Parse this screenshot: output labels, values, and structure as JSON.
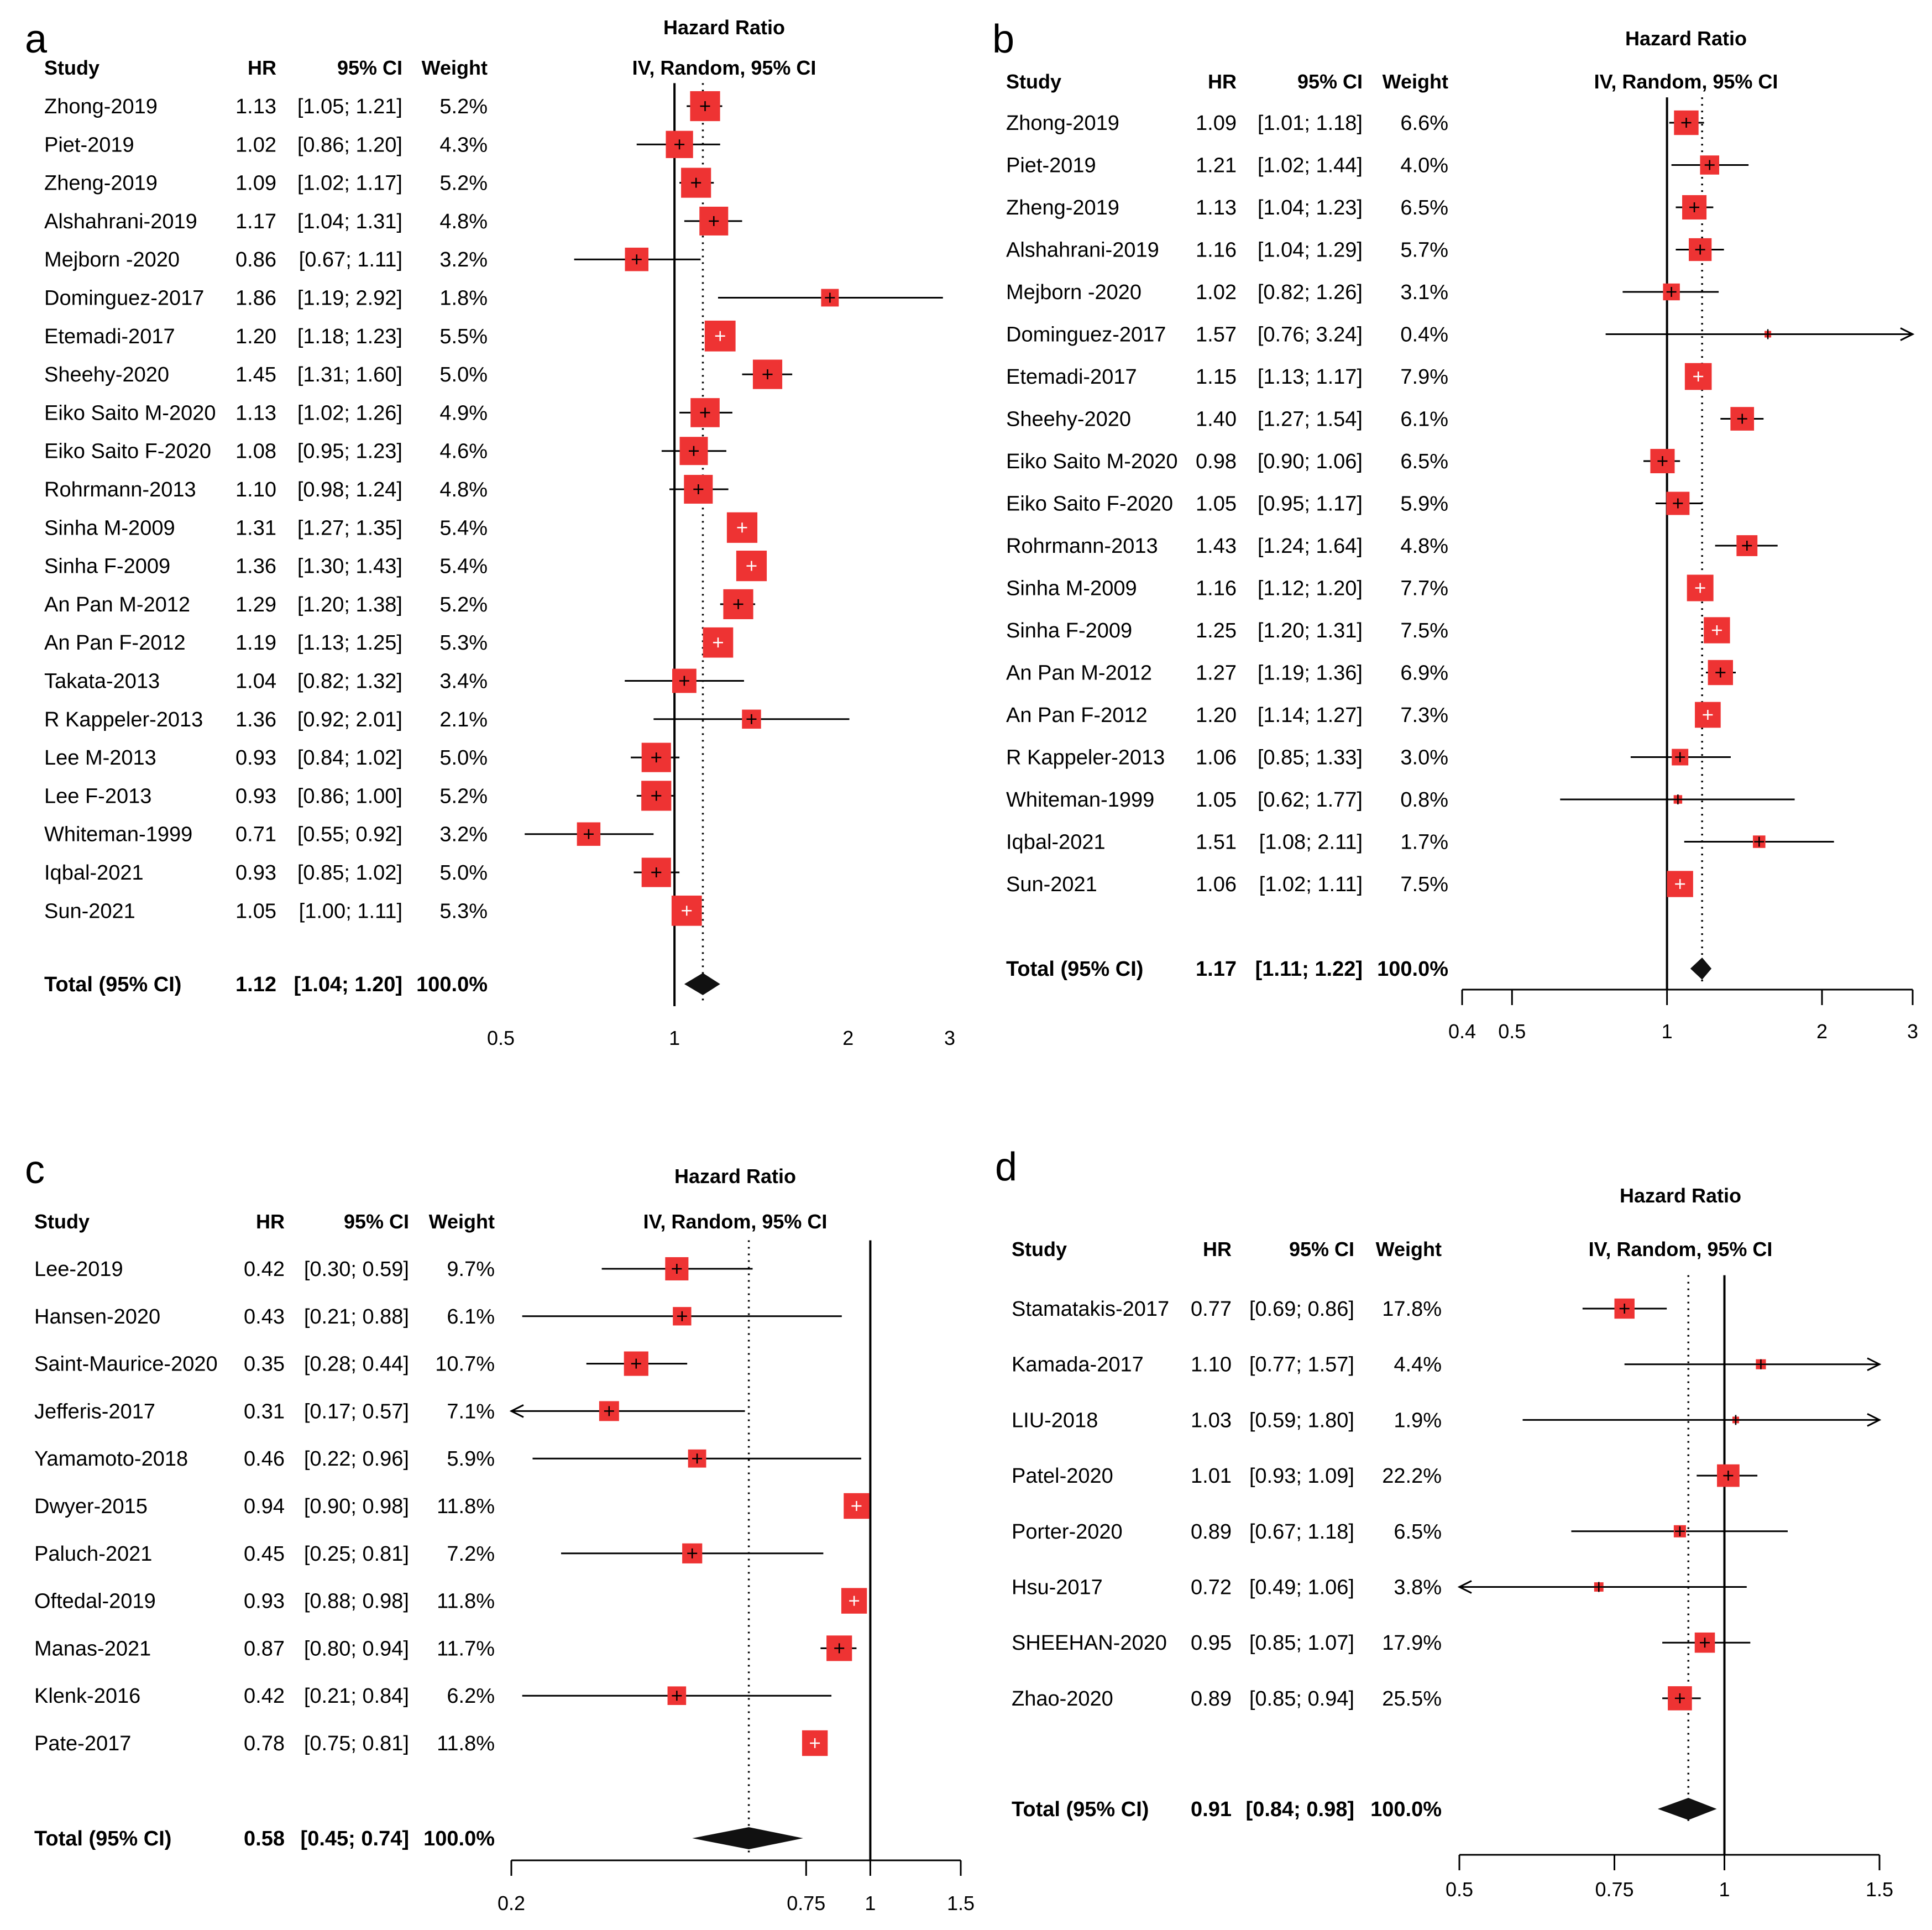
{
  "chart_data": [
    {
      "type": "forest",
      "panel_label": "a",
      "title": "Hazard Ratio",
      "subtitle": "IV, Random, 95% CI",
      "columns": {
        "study": "Study",
        "hr": "HR",
        "ci": "95% CI",
        "weight": "Weight"
      },
      "scale": "log",
      "xlim": [
        0.5,
        3
      ],
      "ticks": [
        {
          "v": 0.5,
          "label": "0.5"
        },
        {
          "v": 1,
          "label": "1"
        },
        {
          "v": 2,
          "label": "2"
        },
        {
          "v": 3,
          "label": "3"
        }
      ],
      "reference_line": 1,
      "pooled_line": 1.12,
      "studies": [
        {
          "name": "Zhong-2019",
          "hr": 1.13,
          "lo": 1.05,
          "hi": 1.21,
          "hr_text": "1.13",
          "ci_text": "[1.05; 1.21]",
          "weight_text": "5.2%",
          "w": 5.2
        },
        {
          "name": "Piet-2019",
          "hr": 1.02,
          "lo": 0.86,
          "hi": 1.2,
          "hr_text": "1.02",
          "ci_text": "[0.86; 1.20]",
          "weight_text": "4.3%",
          "w": 4.3
        },
        {
          "name": "Zheng-2019",
          "hr": 1.09,
          "lo": 1.02,
          "hi": 1.17,
          "hr_text": "1.09",
          "ci_text": "[1.02; 1.17]",
          "weight_text": "5.2%",
          "w": 5.2
        },
        {
          "name": "Alshahrani-2019",
          "hr": 1.17,
          "lo": 1.04,
          "hi": 1.31,
          "hr_text": "1.17",
          "ci_text": "[1.04; 1.31]",
          "weight_text": "4.8%",
          "w": 4.8
        },
        {
          "name": "Mejborn -2020",
          "hr": 0.86,
          "lo": 0.67,
          "hi": 1.11,
          "hr_text": "0.86",
          "ci_text": "[0.67; 1.11]",
          "weight_text": "3.2%",
          "w": 3.2
        },
        {
          "name": "Dominguez-2017",
          "hr": 1.86,
          "lo": 1.19,
          "hi": 2.92,
          "hr_text": "1.86",
          "ci_text": "[1.19; 2.92]",
          "weight_text": "1.8%",
          "w": 1.8
        },
        {
          "name": "Etemadi-2017",
          "hr": 1.2,
          "lo": 1.18,
          "hi": 1.23,
          "hr_text": "1.20",
          "ci_text": "[1.18; 1.23]",
          "weight_text": "5.5%",
          "w": 5.5
        },
        {
          "name": "Sheehy-2020",
          "hr": 1.45,
          "lo": 1.31,
          "hi": 1.6,
          "hr_text": "1.45",
          "ci_text": "[1.31; 1.60]",
          "weight_text": "5.0%",
          "w": 5.0
        },
        {
          "name": "Eiko Saito M-2020",
          "hr": 1.13,
          "lo": 1.02,
          "hi": 1.26,
          "hr_text": "1.13",
          "ci_text": "[1.02; 1.26]",
          "weight_text": "4.9%",
          "w": 4.9
        },
        {
          "name": "Eiko Saito F-2020",
          "hr": 1.08,
          "lo": 0.95,
          "hi": 1.23,
          "hr_text": "1.08",
          "ci_text": "[0.95; 1.23]",
          "weight_text": "4.6%",
          "w": 4.6
        },
        {
          "name": "Rohrmann-2013",
          "hr": 1.1,
          "lo": 0.98,
          "hi": 1.24,
          "hr_text": "1.10",
          "ci_text": "[0.98; 1.24]",
          "weight_text": "4.8%",
          "w": 4.8
        },
        {
          "name": "Sinha M-2009",
          "hr": 1.31,
          "lo": 1.27,
          "hi": 1.35,
          "hr_text": "1.31",
          "ci_text": "[1.27; 1.35]",
          "weight_text": "5.4%",
          "w": 5.4
        },
        {
          "name": "Sinha F-2009",
          "hr": 1.36,
          "lo": 1.3,
          "hi": 1.43,
          "hr_text": "1.36",
          "ci_text": "[1.30; 1.43]",
          "weight_text": "5.4%",
          "w": 5.4
        },
        {
          "name": "An Pan M-2012",
          "hr": 1.29,
          "lo": 1.2,
          "hi": 1.38,
          "hr_text": "1.29",
          "ci_text": "[1.20; 1.38]",
          "weight_text": "5.2%",
          "w": 5.2
        },
        {
          "name": "An Pan F-2012",
          "hr": 1.19,
          "lo": 1.13,
          "hi": 1.25,
          "hr_text": "1.19",
          "ci_text": "[1.13; 1.25]",
          "weight_text": "5.3%",
          "w": 5.3
        },
        {
          "name": "Takata-2013",
          "hr": 1.04,
          "lo": 0.82,
          "hi": 1.32,
          "hr_text": "1.04",
          "ci_text": "[0.82; 1.32]",
          "weight_text": "3.4%",
          "w": 3.4
        },
        {
          "name": "R Kappeler-2013",
          "hr": 1.36,
          "lo": 0.92,
          "hi": 2.01,
          "hr_text": "1.36",
          "ci_text": "[0.92; 2.01]",
          "weight_text": "2.1%",
          "w": 2.1
        },
        {
          "name": "Lee M-2013",
          "hr": 0.93,
          "lo": 0.84,
          "hi": 1.02,
          "hr_text": "0.93",
          "ci_text": "[0.84; 1.02]",
          "weight_text": "5.0%",
          "w": 5.0
        },
        {
          "name": "Lee F-2013",
          "hr": 0.93,
          "lo": 0.86,
          "hi": 1.0,
          "hr_text": "0.93",
          "ci_text": "[0.86; 1.00]",
          "weight_text": "5.2%",
          "w": 5.2
        },
        {
          "name": "Whiteman-1999",
          "hr": 0.71,
          "lo": 0.55,
          "hi": 0.92,
          "hr_text": "0.71",
          "ci_text": "[0.55; 0.92]",
          "weight_text": "3.2%",
          "w": 3.2
        },
        {
          "name": "Iqbal-2021",
          "hr": 0.93,
          "lo": 0.85,
          "hi": 1.02,
          "hr_text": "0.93",
          "ci_text": "[0.85; 1.02]",
          "weight_text": "5.0%",
          "w": 5.0
        },
        {
          "name": "Sun-2021",
          "hr": 1.05,
          "lo": 1.0,
          "hi": 1.11,
          "hr_text": "1.05",
          "ci_text": "[1.00; 1.11]",
          "weight_text": "5.3%",
          "w": 5.3
        }
      ],
      "total": {
        "name": "Total (95% CI)",
        "hr": 1.12,
        "lo": 1.04,
        "hi": 1.2,
        "hr_text": "1.12",
        "ci_text": "[1.04; 1.20]",
        "weight_text": "100.0%"
      }
    },
    {
      "type": "forest",
      "panel_label": "b",
      "title": "Hazard Ratio",
      "subtitle": "IV, Random, 95% CI",
      "columns": {
        "study": "Study",
        "hr": "HR",
        "ci": "95% CI",
        "weight": "Weight"
      },
      "scale": "log",
      "xlim": [
        0.4,
        3
      ],
      "ticks": [
        {
          "v": 0.4,
          "label": "0.4"
        },
        {
          "v": 0.5,
          "label": "0.5"
        },
        {
          "v": 1,
          "label": "1"
        },
        {
          "v": 2,
          "label": "2"
        },
        {
          "v": 3,
          "label": "3"
        }
      ],
      "reference_line": 1,
      "pooled_line": 1.17,
      "studies": [
        {
          "name": "Zhong-2019",
          "hr": 1.09,
          "lo": 1.01,
          "hi": 1.18,
          "hr_text": "1.09",
          "ci_text": "[1.01; 1.18]",
          "weight_text": "6.6%",
          "w": 6.6
        },
        {
          "name": "Piet-2019",
          "hr": 1.21,
          "lo": 1.02,
          "hi": 1.44,
          "hr_text": "1.21",
          "ci_text": "[1.02; 1.44]",
          "weight_text": "4.0%",
          "w": 4.0
        },
        {
          "name": "Zheng-2019",
          "hr": 1.13,
          "lo": 1.04,
          "hi": 1.23,
          "hr_text": "1.13",
          "ci_text": "[1.04; 1.23]",
          "weight_text": "6.5%",
          "w": 6.5
        },
        {
          "name": "Alshahrani-2019",
          "hr": 1.16,
          "lo": 1.04,
          "hi": 1.29,
          "hr_text": "1.16",
          "ci_text": "[1.04; 1.29]",
          "weight_text": "5.7%",
          "w": 5.7
        },
        {
          "name": "Mejborn -2020",
          "hr": 1.02,
          "lo": 0.82,
          "hi": 1.26,
          "hr_text": "1.02",
          "ci_text": "[0.82; 1.26]",
          "weight_text": "3.1%",
          "w": 3.1
        },
        {
          "name": "Dominguez-2017",
          "hr": 1.57,
          "lo": 0.76,
          "hi": 3.24,
          "hr_text": "1.57",
          "ci_text": "[0.76; 3.24]",
          "weight_text": "0.4%",
          "w": 0.4
        },
        {
          "name": "Etemadi-2017",
          "hr": 1.15,
          "lo": 1.13,
          "hi": 1.17,
          "hr_text": "1.15",
          "ci_text": "[1.13; 1.17]",
          "weight_text": "7.9%",
          "w": 7.9
        },
        {
          "name": "Sheehy-2020",
          "hr": 1.4,
          "lo": 1.27,
          "hi": 1.54,
          "hr_text": "1.40",
          "ci_text": "[1.27; 1.54]",
          "weight_text": "6.1%",
          "w": 6.1
        },
        {
          "name": "Eiko Saito M-2020",
          "hr": 0.98,
          "lo": 0.9,
          "hi": 1.06,
          "hr_text": "0.98",
          "ci_text": "[0.90; 1.06]",
          "weight_text": "6.5%",
          "w": 6.5
        },
        {
          "name": "Eiko Saito F-2020",
          "hr": 1.05,
          "lo": 0.95,
          "hi": 1.17,
          "hr_text": "1.05",
          "ci_text": "[0.95; 1.17]",
          "weight_text": "5.9%",
          "w": 5.9
        },
        {
          "name": "Rohrmann-2013",
          "hr": 1.43,
          "lo": 1.24,
          "hi": 1.64,
          "hr_text": "1.43",
          "ci_text": "[1.24; 1.64]",
          "weight_text": "4.8%",
          "w": 4.8
        },
        {
          "name": "Sinha M-2009",
          "hr": 1.16,
          "lo": 1.12,
          "hi": 1.2,
          "hr_text": "1.16",
          "ci_text": "[1.12; 1.20]",
          "weight_text": "7.7%",
          "w": 7.7
        },
        {
          "name": "Sinha F-2009",
          "hr": 1.25,
          "lo": 1.2,
          "hi": 1.31,
          "hr_text": "1.25",
          "ci_text": "[1.20; 1.31]",
          "weight_text": "7.5%",
          "w": 7.5
        },
        {
          "name": "An Pan M-2012",
          "hr": 1.27,
          "lo": 1.19,
          "hi": 1.36,
          "hr_text": "1.27",
          "ci_text": "[1.19; 1.36]",
          "weight_text": "6.9%",
          "w": 6.9
        },
        {
          "name": "An Pan F-2012",
          "hr": 1.2,
          "lo": 1.14,
          "hi": 1.27,
          "hr_text": "1.20",
          "ci_text": "[1.14; 1.27]",
          "weight_text": "7.3%",
          "w": 7.3
        },
        {
          "name": "R Kappeler-2013",
          "hr": 1.06,
          "lo": 0.85,
          "hi": 1.33,
          "hr_text": "1.06",
          "ci_text": "[0.85; 1.33]",
          "weight_text": "3.0%",
          "w": 3.0
        },
        {
          "name": "Whiteman-1999",
          "hr": 1.05,
          "lo": 0.62,
          "hi": 1.77,
          "hr_text": "1.05",
          "ci_text": "[0.62; 1.77]",
          "weight_text": "0.8%",
          "w": 0.8
        },
        {
          "name": "Iqbal-2021",
          "hr": 1.51,
          "lo": 1.08,
          "hi": 2.11,
          "hr_text": "1.51",
          "ci_text": "[1.08; 2.11]",
          "weight_text": "1.7%",
          "w": 1.7
        },
        {
          "name": "Sun-2021",
          "hr": 1.06,
          "lo": 1.02,
          "hi": 1.11,
          "hr_text": "1.06",
          "ci_text": "[1.02; 1.11]",
          "weight_text": "7.5%",
          "w": 7.5
        }
      ],
      "total": {
        "name": "Total (95% CI)",
        "hr": 1.17,
        "lo": 1.11,
        "hi": 1.22,
        "hr_text": "1.17",
        "ci_text": "[1.11; 1.22]",
        "weight_text": "100.0%"
      }
    },
    {
      "type": "forest",
      "panel_label": "c",
      "title": "Hazard Ratio",
      "subtitle": "IV, Random, 95% CI",
      "columns": {
        "study": "Study",
        "hr": "HR",
        "ci": "95% CI",
        "weight": "Weight"
      },
      "scale": "log",
      "xlim": [
        0.2,
        1.5
      ],
      "ticks": [
        {
          "v": 0.2,
          "label": "0.2"
        },
        {
          "v": 0.75,
          "label": "0.75"
        },
        {
          "v": 1,
          "label": "1"
        },
        {
          "v": 1.5,
          "label": "1.5"
        }
      ],
      "reference_line": 1,
      "pooled_line": 0.58,
      "studies": [
        {
          "name": "Lee-2019",
          "hr": 0.42,
          "lo": 0.3,
          "hi": 0.59,
          "hr_text": "0.42",
          "ci_text": "[0.30; 0.59]",
          "weight_text": "9.7%",
          "w": 9.7
        },
        {
          "name": "Hansen-2020",
          "hr": 0.43,
          "lo": 0.21,
          "hi": 0.88,
          "hr_text": "0.43",
          "ci_text": "[0.21; 0.88]",
          "weight_text": "6.1%",
          "w": 6.1
        },
        {
          "name": "Saint-Maurice-2020",
          "hr": 0.35,
          "lo": 0.28,
          "hi": 0.44,
          "hr_text": "0.35",
          "ci_text": "[0.28; 0.44]",
          "weight_text": "10.7%",
          "w": 10.7
        },
        {
          "name": "Jefferis-2017",
          "hr": 0.31,
          "lo": 0.17,
          "hi": 0.57,
          "hr_text": "0.31",
          "ci_text": "[0.17; 0.57]",
          "weight_text": "7.1%",
          "w": 7.1
        },
        {
          "name": "Yamamoto-2018",
          "hr": 0.46,
          "lo": 0.22,
          "hi": 0.96,
          "hr_text": "0.46",
          "ci_text": "[0.22; 0.96]",
          "weight_text": "5.9%",
          "w": 5.9
        },
        {
          "name": "Dwyer-2015",
          "hr": 0.94,
          "lo": 0.9,
          "hi": 0.98,
          "hr_text": "0.94",
          "ci_text": "[0.90; 0.98]",
          "weight_text": "11.8%",
          "w": 11.8
        },
        {
          "name": "Paluch-2021",
          "hr": 0.45,
          "lo": 0.25,
          "hi": 0.81,
          "hr_text": "0.45",
          "ci_text": "[0.25; 0.81]",
          "weight_text": "7.2%",
          "w": 7.2
        },
        {
          "name": "Oftedal-2019",
          "hr": 0.93,
          "lo": 0.88,
          "hi": 0.98,
          "hr_text": "0.93",
          "ci_text": "[0.88; 0.98]",
          "weight_text": "11.8%",
          "w": 11.8
        },
        {
          "name": "Manas-2021",
          "hr": 0.87,
          "lo": 0.8,
          "hi": 0.94,
          "hr_text": "0.87",
          "ci_text": "[0.80; 0.94]",
          "weight_text": "11.7%",
          "w": 11.7
        },
        {
          "name": "Klenk-2016",
          "hr": 0.42,
          "lo": 0.21,
          "hi": 0.84,
          "hr_text": "0.42",
          "ci_text": "[0.21; 0.84]",
          "weight_text": "6.2%",
          "w": 6.2
        },
        {
          "name": "Pate-2017",
          "hr": 0.78,
          "lo": 0.75,
          "hi": 0.81,
          "hr_text": "0.78",
          "ci_text": "[0.75; 0.81]",
          "weight_text": "11.8%",
          "w": 11.8
        }
      ],
      "total": {
        "name": "Total (95% CI)",
        "hr": 0.58,
        "lo": 0.45,
        "hi": 0.74,
        "hr_text": "0.58",
        "ci_text": "[0.45; 0.74]",
        "weight_text": "100.0%"
      }
    },
    {
      "type": "forest",
      "panel_label": "d",
      "title": "Hazard Ratio",
      "subtitle": "IV, Random, 95% CI",
      "columns": {
        "study": "Study",
        "hr": "HR",
        "ci": "95% CI",
        "weight": "Weight"
      },
      "scale": "log",
      "xlim": [
        0.5,
        1.5
      ],
      "ticks": [
        {
          "v": 0.5,
          "label": "0.5"
        },
        {
          "v": 0.75,
          "label": "0.75"
        },
        {
          "v": 1,
          "label": "1"
        },
        {
          "v": 1.5,
          "label": "1.5"
        }
      ],
      "reference_line": 1,
      "pooled_line": 0.91,
      "studies": [
        {
          "name": "Stamatakis-2017",
          "hr": 0.77,
          "lo": 0.69,
          "hi": 0.86,
          "hr_text": "0.77",
          "ci_text": "[0.69; 0.86]",
          "weight_text": "17.8%",
          "w": 17.8
        },
        {
          "name": "Kamada-2017",
          "hr": 1.1,
          "lo": 0.77,
          "hi": 1.57,
          "hr_text": "1.10",
          "ci_text": "[0.77; 1.57]",
          "weight_text": "4.4%",
          "w": 4.4
        },
        {
          "name": "LIU-2018",
          "hr": 1.03,
          "lo": 0.59,
          "hi": 1.8,
          "hr_text": "1.03",
          "ci_text": "[0.59; 1.80]",
          "weight_text": "1.9%",
          "w": 1.9
        },
        {
          "name": "Patel-2020",
          "hr": 1.01,
          "lo": 0.93,
          "hi": 1.09,
          "hr_text": "1.01",
          "ci_text": "[0.93; 1.09]",
          "weight_text": "22.2%",
          "w": 22.2
        },
        {
          "name": "Porter-2020",
          "hr": 0.89,
          "lo": 0.67,
          "hi": 1.18,
          "hr_text": "0.89",
          "ci_text": "[0.67; 1.18]",
          "weight_text": "6.5%",
          "w": 6.5
        },
        {
          "name": "Hsu-2017",
          "hr": 0.72,
          "lo": 0.49,
          "hi": 1.06,
          "hr_text": "0.72",
          "ci_text": "[0.49; 1.06]",
          "weight_text": "3.8%",
          "w": 3.8
        },
        {
          "name": "SHEEHAN-2020",
          "hr": 0.95,
          "lo": 0.85,
          "hi": 1.07,
          "hr_text": "0.95",
          "ci_text": "[0.85; 1.07]",
          "weight_text": "17.9%",
          "w": 17.9
        },
        {
          "name": "Zhao-2020",
          "hr": 0.89,
          "lo": 0.85,
          "hi": 0.94,
          "hr_text": "0.89",
          "ci_text": "[0.85; 0.94]",
          "weight_text": "25.5%",
          "w": 25.5
        }
      ],
      "total": {
        "name": "Total (95% CI)",
        "hr": 0.91,
        "lo": 0.84,
        "hi": 0.98,
        "hr_text": "0.91",
        "ci_text": "[0.84; 0.98]",
        "weight_text": "100.0%"
      }
    }
  ],
  "colors": {
    "box": "#ee3333",
    "line": "#000000",
    "diamond": "#111111",
    "background": "#ffffff"
  }
}
